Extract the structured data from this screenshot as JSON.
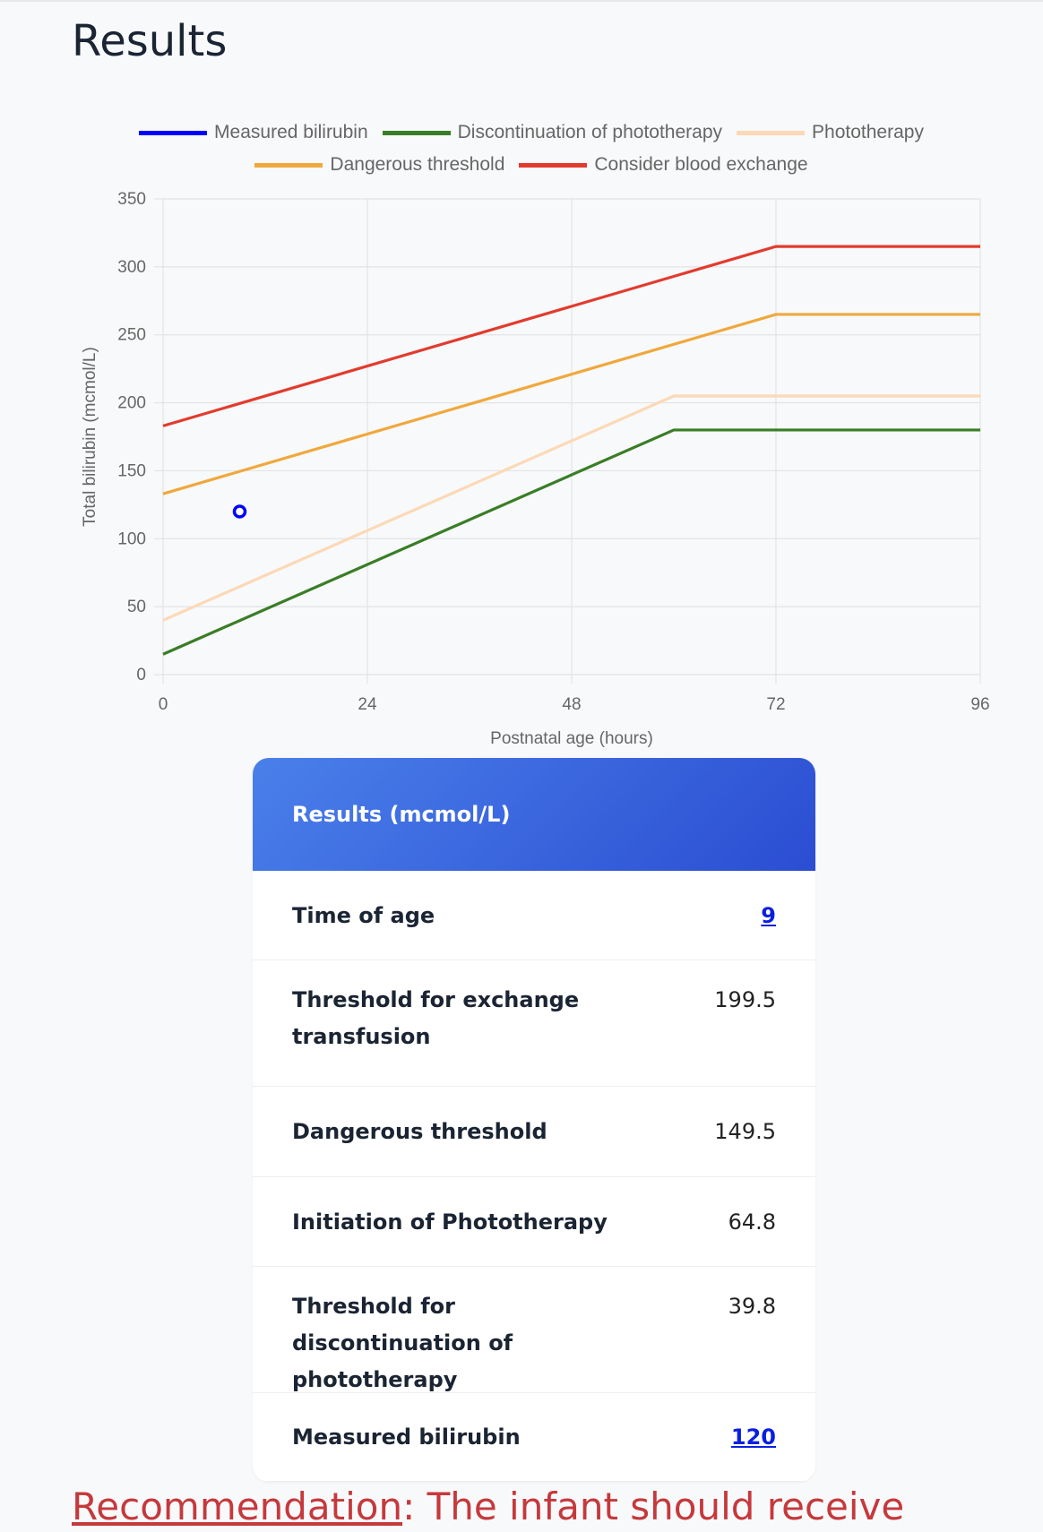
{
  "header": {
    "title": "Results"
  },
  "chart_data": {
    "type": "line",
    "xlabel": "Postnatal age (hours)",
    "ylabel": "Total bilirubin (mcmol/L)",
    "xlim": [
      0,
      96
    ],
    "xticks": [
      0,
      24,
      48,
      72,
      96
    ],
    "ylim": [
      0,
      350
    ],
    "yticks": [
      0,
      50,
      100,
      150,
      200,
      250,
      300,
      350
    ],
    "grid": true,
    "series": [
      {
        "name": "Measured bilirubin",
        "color": "#0000ff",
        "style": "point",
        "x": [
          9
        ],
        "values": [
          120
        ]
      },
      {
        "name": "Discontinuation of phototherapy",
        "color": "#3a7d27",
        "style": "line",
        "x": [
          0,
          60,
          96
        ],
        "values": [
          15,
          180,
          180
        ]
      },
      {
        "name": "Phototherapy",
        "color": "#fcd9b6",
        "style": "line",
        "x": [
          0,
          60,
          96
        ],
        "values": [
          40,
          205,
          205
        ]
      },
      {
        "name": "Dangerous threshold",
        "color": "#f0a83c",
        "style": "line",
        "x": [
          0,
          72,
          96
        ],
        "values": [
          133,
          265,
          265
        ]
      },
      {
        "name": "Consider blood exchange",
        "color": "#e23b2e",
        "style": "line",
        "x": [
          0,
          72,
          96
        ],
        "values": [
          183,
          315,
          315
        ]
      }
    ]
  },
  "table": {
    "title": "Results (mcmol/L)",
    "rows": [
      [
        "Time of age",
        "9"
      ],
      [
        "Threshold for exchange transfusion",
        "199.5"
      ],
      [
        "Dangerous threshold",
        "149.5"
      ],
      [
        "Initiation of Phototherapy",
        "64.8"
      ],
      [
        "Threshold for discontinuation of phototherapy",
        "39.8"
      ],
      [
        "Measured bilirubin",
        "120"
      ]
    ]
  },
  "recommendation": {
    "label": "Recommendation",
    "text": ": The infant should receive"
  }
}
